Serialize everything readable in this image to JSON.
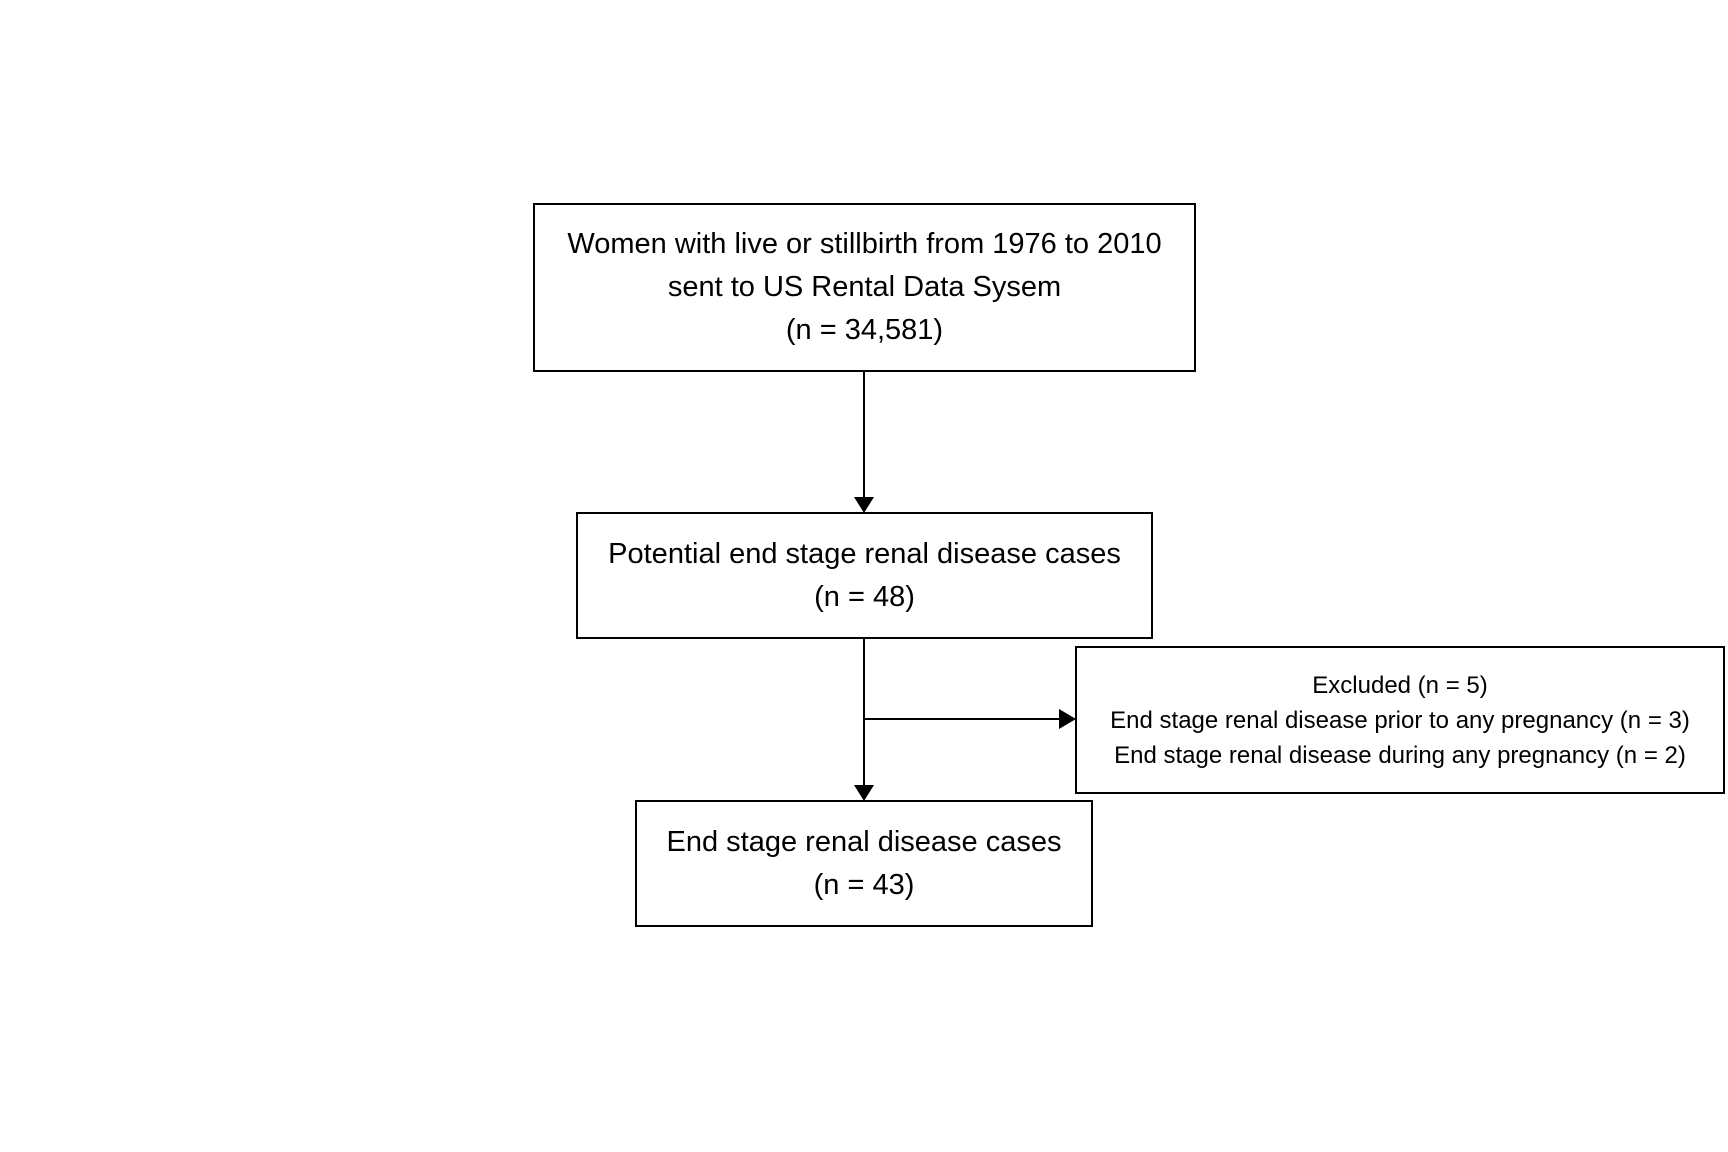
{
  "nodes": {
    "start": {
      "line1": "Women with live or stillbirth from 1976 to 2010",
      "line2": "sent to US Rental Data Sysem",
      "line3": "(n = 34,581)"
    },
    "potential": {
      "line1": "Potential end stage renal disease cases",
      "line2": "(n = 48)"
    },
    "excluded": {
      "line1": "Excluded (n = 5)",
      "line2": "End stage renal disease prior to any pregnancy (n = 3)",
      "line3": "End stage renal disease during any pregnancy (n = 2)"
    },
    "final": {
      "line1": "End stage renal disease cases",
      "line2": "(n = 43)"
    }
  },
  "edges": [
    {
      "from": "start",
      "to": "potential"
    },
    {
      "from": "potential",
      "to": "final"
    },
    {
      "from": "potential",
      "to": "excluded"
    }
  ],
  "colors": {
    "stroke": "#000000",
    "background": "#ffffff",
    "text": "#000000"
  }
}
